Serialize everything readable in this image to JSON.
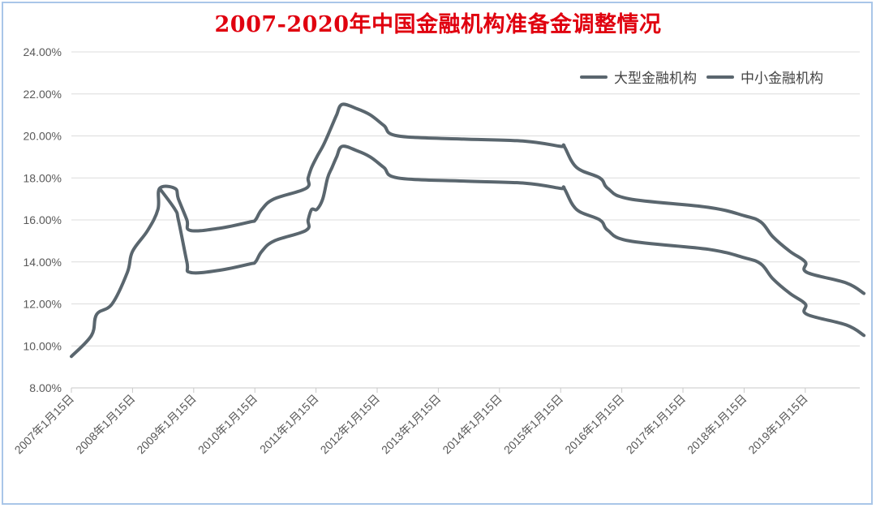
{
  "chart_data": {
    "type": "line",
    "title": "2007-2020年中国金融机构准备金调整情况",
    "xlabel": "",
    "ylabel": "",
    "x_ticks": [
      "2007年1月15日",
      "2008年1月15日",
      "2009年1月15日",
      "2010年1月15日",
      "2011年1月15日",
      "2012年1月15日",
      "2013年1月15日",
      "2014年1月15日",
      "2015年1月15日",
      "2016年1月15日",
      "2017年1月15日",
      "2018年1月15日",
      "2019年1月15日"
    ],
    "y_ticks": [
      "8.00%",
      "10.00%",
      "12.00%",
      "14.00%",
      "16.00%",
      "18.00%",
      "20.00%",
      "22.00%",
      "24.00%"
    ],
    "ylim": [
      8,
      24
    ],
    "xlim": [
      "2007-01-15",
      "2020-01-15"
    ],
    "grid": true,
    "legend_position": "top-right",
    "line_color": "#5a666e",
    "series": [
      {
        "name": "大型金融机构",
        "points": [
          [
            "2007-01-15",
            9.5
          ],
          [
            "2007-05-15",
            10.5
          ],
          [
            "2007-06-15",
            11.5
          ],
          [
            "2007-09-15",
            12.0
          ],
          [
            "2007-12-15",
            13.5
          ],
          [
            "2008-01-15",
            14.5
          ],
          [
            "2008-04-15",
            15.5
          ],
          [
            "2008-06-15",
            16.5
          ],
          [
            "2008-06-25",
            17.5
          ],
          [
            "2008-09-25",
            17.5
          ],
          [
            "2008-10-15",
            17.0
          ],
          [
            "2008-12-05",
            16.0
          ],
          [
            "2008-12-25",
            15.5
          ],
          [
            "2009-06-15",
            15.6
          ],
          [
            "2009-12-15",
            15.9
          ],
          [
            "2010-01-18",
            16.0
          ],
          [
            "2010-02-25",
            16.5
          ],
          [
            "2010-05-10",
            17.0
          ],
          [
            "2010-11-16",
            17.5
          ],
          [
            "2010-11-29",
            18.0
          ],
          [
            "2010-12-20",
            18.5
          ],
          [
            "2011-01-20",
            19.0
          ],
          [
            "2011-02-24",
            19.5
          ],
          [
            "2011-03-25",
            20.0
          ],
          [
            "2011-04-21",
            20.5
          ],
          [
            "2011-05-18",
            21.0
          ],
          [
            "2011-06-20",
            21.5
          ],
          [
            "2011-09-15",
            21.3
          ],
          [
            "2011-12-05",
            21.0
          ],
          [
            "2012-02-24",
            20.5
          ],
          [
            "2012-05-18",
            20.0
          ],
          [
            "2013-06-15",
            19.85
          ],
          [
            "2014-06-15",
            19.75
          ],
          [
            "2015-01-15",
            19.5
          ],
          [
            "2015-02-05",
            19.5
          ],
          [
            "2015-04-20",
            18.5
          ],
          [
            "2015-09-06",
            18.0
          ],
          [
            "2015-10-24",
            17.5
          ],
          [
            "2016-03-01",
            17.0
          ],
          [
            "2017-06-15",
            16.6
          ],
          [
            "2018-01-15",
            16.2
          ],
          [
            "2018-04-25",
            15.9
          ],
          [
            "2018-07-05",
            15.2
          ],
          [
            "2018-10-15",
            14.5
          ],
          [
            "2019-01-15",
            14.0
          ],
          [
            "2019-01-25",
            13.5
          ],
          [
            "2019-09-16",
            13.0
          ],
          [
            "2019-12-31",
            12.5
          ]
        ]
      },
      {
        "name": "中小金融机构",
        "points": [
          [
            "2008-06-25",
            17.5
          ],
          [
            "2008-09-25",
            16.5
          ],
          [
            "2008-10-15",
            16.0
          ],
          [
            "2008-12-05",
            14.0
          ],
          [
            "2008-12-25",
            13.5
          ],
          [
            "2009-06-15",
            13.6
          ],
          [
            "2009-12-15",
            13.9
          ],
          [
            "2010-01-18",
            14.0
          ],
          [
            "2010-02-25",
            14.5
          ],
          [
            "2010-05-10",
            15.0
          ],
          [
            "2010-11-16",
            15.5
          ],
          [
            "2010-11-29",
            16.0
          ],
          [
            "2010-12-20",
            16.5
          ],
          [
            "2011-01-20",
            16.5
          ],
          [
            "2011-02-24",
            17.0
          ],
          [
            "2011-03-25",
            18.0
          ],
          [
            "2011-04-21",
            18.5
          ],
          [
            "2011-05-18",
            19.0
          ],
          [
            "2011-06-20",
            19.5
          ],
          [
            "2011-09-15",
            19.3
          ],
          [
            "2011-12-05",
            19.0
          ],
          [
            "2012-02-24",
            18.5
          ],
          [
            "2012-05-18",
            18.0
          ],
          [
            "2013-06-15",
            17.85
          ],
          [
            "2014-06-15",
            17.75
          ],
          [
            "2015-01-15",
            17.5
          ],
          [
            "2015-02-05",
            17.5
          ],
          [
            "2015-04-20",
            16.5
          ],
          [
            "2015-09-06",
            16.0
          ],
          [
            "2015-10-24",
            15.5
          ],
          [
            "2016-03-01",
            15.0
          ],
          [
            "2017-06-15",
            14.6
          ],
          [
            "2018-01-15",
            14.2
          ],
          [
            "2018-04-25",
            13.9
          ],
          [
            "2018-07-05",
            13.2
          ],
          [
            "2018-10-15",
            12.5
          ],
          [
            "2019-01-15",
            12.0
          ],
          [
            "2019-01-25",
            11.5
          ],
          [
            "2019-09-16",
            11.0
          ],
          [
            "2019-12-31",
            10.5
          ]
        ]
      }
    ]
  }
}
